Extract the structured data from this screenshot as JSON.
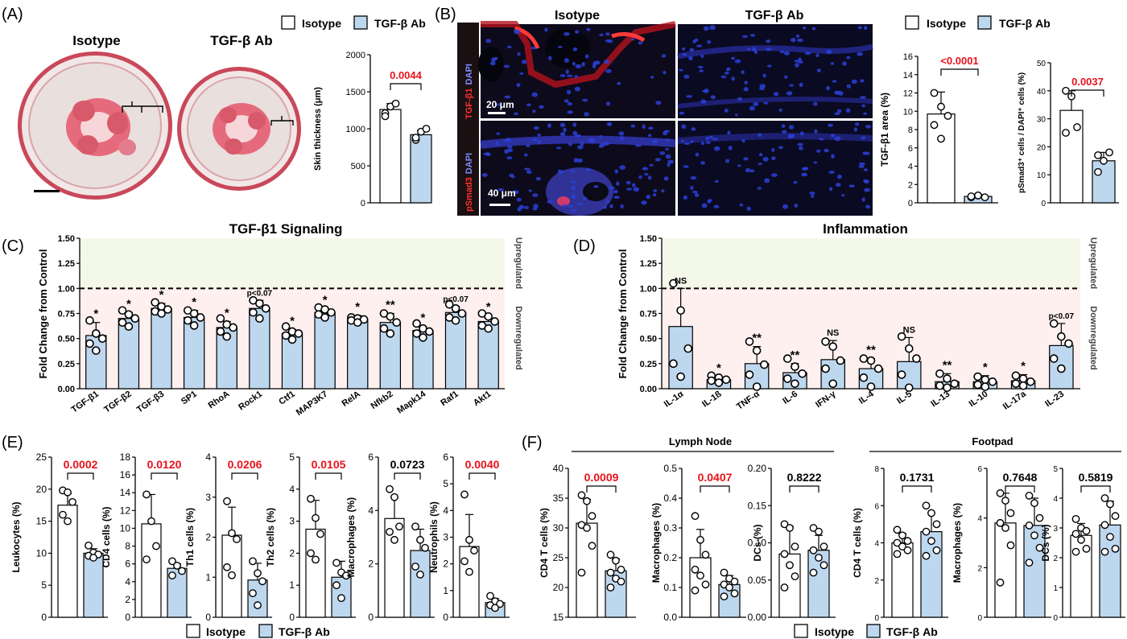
{
  "colors": {
    "isotype": "#ffffff",
    "tgf": "#bdd7ee",
    "red": "#e8121b",
    "up_bg": "#f4f8e9",
    "down_bg": "#fdf0ef",
    "stroke": "#000000"
  },
  "panelLabels": [
    "(A)",
    "(B)",
    "(C)",
    "(D)",
    "(E)",
    "(F)"
  ],
  "legend": {
    "isotype": "Isotype",
    "tgf": "TGF-β Ab"
  },
  "panelA": {
    "labels": {
      "iso": "Isotype",
      "tgf": "TGF-β Ab"
    },
    "chart": {
      "ylabel": "Skin thickness (μm)",
      "yticks": [
        "0",
        "500",
        "1000",
        "1500",
        "2000"
      ],
      "ylim": [
        0,
        2000
      ],
      "pvalue": "0.0044",
      "groups": [
        {
          "mean": 1260,
          "err": 80,
          "pts": [
            1210,
            1300,
            1340,
            1170
          ]
        },
        {
          "mean": 920,
          "err": 60,
          "pts": [
            850,
            960,
            1000,
            880
          ]
        }
      ]
    }
  },
  "panelB": {
    "columnLabels": [
      "Isotype",
      "TGF-β Ab"
    ],
    "rowLabels": [
      {
        "stain": "TGF-β1",
        "dapi": "DAPI"
      },
      {
        "stain": "pSmad3",
        "dapi": "DAPI"
      }
    ],
    "scaleBars": [
      "20 μm",
      "40 μm"
    ],
    "charts": [
      {
        "ylabel": "TGF-β1 area (%)",
        "yticks": [
          "0",
          "2",
          "4",
          "6",
          "8",
          "10",
          "12",
          "14",
          "16"
        ],
        "ylim": [
          0,
          16
        ],
        "pvalue": "<0.0001",
        "groups": [
          {
            "mean": 9.7,
            "err": 2.4,
            "pts": [
              12,
              10.5,
              9.5,
              8.5,
              7
            ]
          },
          {
            "mean": 0.7,
            "err": 0.2,
            "pts": [
              0.6,
              0.8,
              0.6,
              0.7,
              0.8
            ]
          }
        ]
      },
      {
        "ylabel": "pSmad3⁺ cells / DAPI⁺ cells (%)",
        "yticks": [
          "0",
          "10",
          "20",
          "30",
          "40",
          "50"
        ],
        "ylim": [
          0,
          50
        ],
        "pvalue": "0.0037",
        "groups": [
          {
            "mean": 33,
            "err": 7,
            "pts": [
              40,
              38,
              27,
              25
            ]
          },
          {
            "mean": 15,
            "err": 3,
            "pts": [
              17,
              15,
              18,
              11
            ]
          }
        ]
      }
    ]
  },
  "panelC": {
    "chart_data": {
      "type": "bar",
      "title": "TGF-β1 Signaling",
      "ylabel": "Fold Change from Control",
      "ylim": [
        0,
        1.5
      ],
      "yticks": [
        "0.00",
        "0.25",
        "0.50",
        "0.75",
        "1.00",
        "1.25",
        "1.50"
      ],
      "categories": [
        "TGF-β1",
        "TGF-β2",
        "TGF-β3",
        "SP1",
        "RhoA",
        "Rock1",
        "Ctf1",
        "MAP3K7",
        "RelA",
        "Nfkb2",
        "Mapk14",
        "Raf1",
        "Akt1"
      ],
      "values": [
        0.53,
        0.7,
        0.8,
        0.71,
        0.61,
        0.8,
        0.55,
        0.76,
        0.69,
        0.66,
        0.58,
        0.76,
        0.67
      ],
      "errors": [
        0.13,
        0.06,
        0.05,
        0.07,
        0.06,
        0.08,
        0.04,
        0.04,
        0.04,
        0.09,
        0.04,
        0.06,
        0.06
      ],
      "points": [
        [
          0.68,
          0.55,
          0.5,
          0.45,
          0.38
        ],
        [
          0.78,
          0.74,
          0.7,
          0.66,
          0.62
        ],
        [
          0.86,
          0.82,
          0.79,
          0.77,
          0.75
        ],
        [
          0.78,
          0.75,
          0.71,
          0.68,
          0.63
        ],
        [
          0.7,
          0.64,
          0.61,
          0.57,
          0.52
        ],
        [
          0.88,
          0.85,
          0.8,
          0.76,
          0.7
        ],
        [
          0.62,
          0.57,
          0.55,
          0.53,
          0.49
        ],
        [
          0.81,
          0.79,
          0.76,
          0.74,
          0.71
        ],
        [
          0.71,
          0.7,
          0.69,
          0.68,
          0.66
        ],
        [
          0.75,
          0.72,
          0.66,
          0.6,
          0.55
        ],
        [
          0.65,
          0.6,
          0.57,
          0.55,
          0.51
        ],
        [
          0.84,
          0.8,
          0.75,
          0.71,
          0.68
        ],
        [
          0.75,
          0.72,
          0.67,
          0.63,
          0.6
        ]
      ],
      "significance": [
        "*",
        "*",
        "*",
        "*",
        "*",
        "p<0.07",
        "*",
        "*",
        "*",
        "**",
        "*",
        "p<0.07",
        "*"
      ],
      "reference_line": 1.0,
      "regions": {
        "up": "Upregulated",
        "down": "Downregulated"
      }
    }
  },
  "panelD": {
    "chart_data": {
      "type": "bar",
      "title": "Inflammation",
      "ylabel": "Fold Change from Control",
      "ylim": [
        0,
        1.5
      ],
      "yticks": [
        "0.00",
        "0.25",
        "0.50",
        "0.75",
        "1.00",
        "1.25",
        "1.50"
      ],
      "categories": [
        "IL-1α",
        "IL-1ß",
        "TNF-α",
        "IL-6",
        "IFN-γ",
        "IL-4",
        "IL-5",
        "IL-13",
        "IL-10",
        "IL-17a",
        "IL-23"
      ],
      "values": [
        0.62,
        0.09,
        0.25,
        0.16,
        0.29,
        0.2,
        0.27,
        0.07,
        0.07,
        0.08,
        0.43
      ],
      "errors": [
        0.38,
        0.03,
        0.17,
        0.09,
        0.19,
        0.1,
        0.24,
        0.08,
        0.06,
        0.06,
        0.22
      ],
      "points": [
        [
          1.05,
          0.78,
          0.4,
          0.25,
          0.12
        ],
        [
          0.13,
          0.11,
          0.09,
          0.08,
          0.06
        ],
        [
          0.47,
          0.38,
          0.24,
          0.14,
          0.02
        ],
        [
          0.3,
          0.22,
          0.15,
          0.1,
          0.05
        ],
        [
          0.47,
          0.42,
          0.28,
          0.2,
          0.05
        ],
        [
          0.3,
          0.28,
          0.2,
          0.11,
          0.02
        ],
        [
          0.52,
          0.4,
          0.3,
          0.14,
          0.01
        ],
        [
          0.15,
          0.1,
          0.05,
          0.03,
          0.01
        ],
        [
          0.12,
          0.09,
          0.07,
          0.04,
          0.02
        ],
        [
          0.13,
          0.1,
          0.07,
          0.05,
          0.03
        ],
        [
          0.65,
          0.52,
          0.45,
          0.3,
          0.2
        ]
      ],
      "significance": [
        "NS",
        "*",
        "**",
        "**",
        "NS",
        "**",
        "NS",
        "**",
        "*",
        "*",
        "p<0.07"
      ],
      "reference_line": 1.0,
      "regions": {
        "up": "Upregulated",
        "down": "Downregulated"
      }
    }
  },
  "panelE": {
    "chart_data": [
      {
        "type": "bar",
        "ylabel": "Leukocytes (%)",
        "yticks": [
          "0",
          "5",
          "10",
          "15",
          "20",
          "25"
        ],
        "ylim": [
          0,
          25
        ],
        "pvalue": "0.0002",
        "sig": true,
        "groups": [
          {
            "mean": 17.5,
            "err": 1.8,
            "pts": [
              19.8,
              19.5,
              18.0,
              16.0,
              15.0
            ]
          },
          {
            "mean": 10.0,
            "err": 0.7,
            "pts": [
              11.2,
              10.1,
              9.8,
              9.6,
              9.3
            ]
          }
        ]
      },
      {
        "type": "bar",
        "ylabel": "CD4 cells (%)",
        "yticks": [
          "0",
          "2",
          "4",
          "6",
          "8",
          "10",
          "12",
          "14",
          "16",
          "18"
        ],
        "ylim": [
          0,
          18
        ],
        "pvalue": "0.0120",
        "sig": true,
        "groups": [
          {
            "mean": 10.5,
            "err": 3.3,
            "pts": [
              13.8,
              10.8,
              8.0,
              6.5
            ]
          },
          {
            "mean": 5.5,
            "err": 0.5,
            "pts": [
              6.3,
              5.8,
              5.2,
              4.7
            ]
          }
        ]
      },
      {
        "type": "bar",
        "ylabel": "Th1 cells (%)",
        "yticks": [
          "0",
          "1",
          "2",
          "3",
          "4"
        ],
        "ylim": [
          0,
          4
        ],
        "pvalue": "0.0206",
        "sig": true,
        "groups": [
          {
            "mean": 2.05,
            "err": 0.7,
            "pts": [
              2.9,
              2.1,
              1.95,
              1.25,
              1.05
            ]
          },
          {
            "mean": 0.93,
            "err": 0.42,
            "pts": [
              1.4,
              1.1,
              0.9,
              0.6,
              0.3
            ]
          }
        ]
      },
      {
        "type": "bar",
        "ylabel": "Th2 cells (%)",
        "yticks": [
          "0",
          "1",
          "2",
          "3",
          "4",
          "5"
        ],
        "ylim": [
          0,
          5
        ],
        "pvalue": "0.0105",
        "sig": true,
        "groups": [
          {
            "mean": 2.75,
            "err": 0.9,
            "pts": [
              3.7,
              3.1,
              2.6,
              2.0,
              1.8
            ]
          },
          {
            "mean": 1.25,
            "err": 0.5,
            "pts": [
              1.7,
              1.4,
              1.3,
              1.0,
              0.6
            ]
          }
        ]
      },
      {
        "type": "bar",
        "ylabel": "Macrophages (%)",
        "yticks": [
          "0",
          "2",
          "4",
          "6"
        ],
        "ylim": [
          0,
          6
        ],
        "pvalue": "0.0723",
        "sig": false,
        "groups": [
          {
            "mean": 3.7,
            "err": 0.8,
            "pts": [
              4.8,
              4.5,
              3.4,
              3.2,
              2.9
            ]
          },
          {
            "mean": 2.5,
            "err": 0.8,
            "pts": [
              3.4,
              2.9,
              2.6,
              1.9,
              1.6
            ]
          }
        ]
      },
      {
        "type": "bar",
        "ylabel": "Neutrophils (%)",
        "yticks": [
          "0",
          "1",
          "2",
          "3",
          "4",
          "5",
          "6"
        ],
        "ylim": [
          0,
          6
        ],
        "pvalue": "0.0040",
        "sig": true,
        "groups": [
          {
            "mean": 2.65,
            "err": 1.2,
            "pts": [
              4.6,
              2.9,
              2.5,
              2.1,
              1.7
            ]
          },
          {
            "mean": 0.55,
            "err": 0.15,
            "pts": [
              0.8,
              0.6,
              0.5,
              0.45,
              0.35
            ]
          }
        ]
      }
    ]
  },
  "panelF": {
    "sections": [
      "Lymph Node",
      "Footpad"
    ],
    "chart_data": [
      {
        "type": "bar",
        "ylabel": "CD4 T cells (%)",
        "yticks": [
          "15",
          "20",
          "25",
          "30",
          "35",
          "40"
        ],
        "ylim": [
          15,
          40
        ],
        "pvalue": "0.0009",
        "sig": true,
        "groups": [
          {
            "mean": 30.8,
            "err": 4.0,
            "pts": [
              35.5,
              34.5,
              32.0,
              30.5,
              30.0,
              27.0,
              22.5
            ]
          },
          {
            "mean": 22.8,
            "err": 2.0,
            "pts": [
              25.5,
              24.5,
              23.0,
              22.5,
              21.5,
              21.0,
              20.0
            ]
          }
        ]
      },
      {
        "type": "bar",
        "ylabel": "Macrophages (%)",
        "yticks": [
          "0.0",
          "0.1",
          "0.2",
          "0.3",
          "0.4",
          "0.5"
        ],
        "ylim": [
          0,
          0.5
        ],
        "pvalue": "0.0407",
        "sig": true,
        "groups": [
          {
            "mean": 0.2,
            "err": 0.095,
            "pts": [
              0.34,
              0.26,
              0.21,
              0.16,
              0.14,
              0.11,
              0.09
            ]
          },
          {
            "mean": 0.11,
            "err": 0.03,
            "pts": [
              0.15,
              0.13,
              0.12,
              0.11,
              0.1,
              0.08,
              0.07
            ]
          }
        ]
      },
      {
        "type": "bar",
        "ylabel": "DCs (%)",
        "yticks": [
          "0.00",
          "0.05",
          "0.10",
          "0.15",
          "0.20"
        ],
        "ylim": [
          0,
          0.2
        ],
        "pvalue": "0.8222",
        "sig": false,
        "groups": [
          {
            "mean": 0.085,
            "err": 0.037,
            "pts": [
              0.125,
              0.12,
              0.095,
              0.085,
              0.07,
              0.055,
              0.04
            ]
          },
          {
            "mean": 0.09,
            "err": 0.02,
            "pts": [
              0.12,
              0.115,
              0.095,
              0.09,
              0.08,
              0.07,
              0.06
            ]
          }
        ]
      },
      {
        "type": "bar",
        "ylabel": "CD4 T cells (%)",
        "yticks": [
          "0",
          "2",
          "4",
          "6",
          "8"
        ],
        "ylim": [
          0,
          8
        ],
        "pvalue": "0.1731",
        "sig": false,
        "groups": [
          {
            "mean": 4.0,
            "err": 0.5,
            "pts": [
              4.7,
              4.4,
              4.1,
              4.0,
              3.8,
              3.6,
              3.4
            ]
          },
          {
            "mean": 4.6,
            "err": 1.0,
            "pts": [
              6.0,
              5.6,
              5.0,
              4.6,
              4.1,
              3.6,
              3.3
            ]
          }
        ]
      },
      {
        "type": "bar",
        "ylabel": "Macrophages (%)",
        "yticks": [
          "0",
          "2",
          "4",
          "6"
        ],
        "ylim": [
          0,
          6
        ],
        "pvalue": "0.7648",
        "sig": false,
        "groups": [
          {
            "mean": 3.8,
            "err": 1.2,
            "pts": [
              5.0,
              4.7,
              4.2,
              3.8,
              3.6,
              2.9,
              1.4
            ]
          },
          {
            "mean": 3.7,
            "err": 1.1,
            "pts": [
              4.9,
              4.6,
              4.0,
              3.7,
              3.3,
              2.8,
              2.2
            ]
          }
        ]
      },
      {
        "type": "bar",
        "ylabel": "DCs (%)",
        "yticks": [
          "0",
          "1",
          "2",
          "3",
          "4",
          "5"
        ],
        "ylim": [
          0,
          5
        ],
        "pvalue": "0.5819",
        "sig": false,
        "groups": [
          {
            "mean": 2.75,
            "err": 0.4,
            "pts": [
              3.3,
              3.0,
              2.9,
              2.8,
              2.6,
              2.3,
              2.2
            ]
          },
          {
            "mean": 3.1,
            "err": 0.8,
            "pts": [
              4.0,
              3.8,
              3.4,
              3.1,
              2.7,
              2.3,
              2.2
            ]
          }
        ]
      }
    ]
  }
}
